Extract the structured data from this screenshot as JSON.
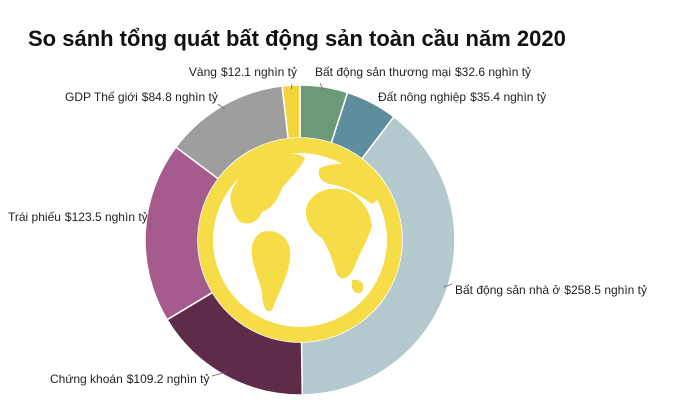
{
  "chart_data": {
    "type": "donut",
    "title": "So sánh tổng quát bất động sản toàn cầu năm 2020",
    "categories": [
      "Bất động sản thương mại",
      "Đất nông nghiệp",
      "Bất động sản nhà ở",
      "Chứng khoán",
      "Trái phiếu",
      "GDP Thế giới",
      "Vàng"
    ],
    "values": [
      32.6,
      35.4,
      258.5,
      109.2,
      123.5,
      84.8,
      12.1
    ],
    "value_labels": [
      "$32.6 nghìn tỷ",
      "$35.4 nghìn tỷ",
      "$258.5 nghìn tỷ",
      "$109.2 nghìn tỷ",
      "$123.5 nghìn tỷ",
      "$84.8 nghìn tỷ",
      "$12.1 nghìn tỷ"
    ],
    "colors": [
      "#6c9a76",
      "#5e8e9c",
      "#b3c9cd",
      "#5e2b49",
      "#a65b8e",
      "#9e9e9e",
      "#f3d43a"
    ]
  }
}
